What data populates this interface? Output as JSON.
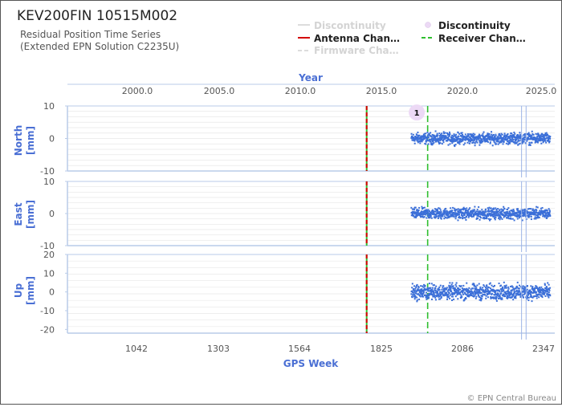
{
  "header": {
    "station": "KEV200FIN 10515M002",
    "subtitle_line1": "Residual Position Time Series",
    "subtitle_line2": "(Extended EPN Solution C2235U)",
    "footer": "© EPN Central Bureau"
  },
  "legend": {
    "items": [
      {
        "label": "Discontinuity",
        "style": "line-faded",
        "color": "#dcdcdc"
      },
      {
        "label": "Discontinuity",
        "style": "circle",
        "color": "#e6d2f0"
      },
      {
        "label": "Antenna Chan…",
        "style": "line",
        "color": "#d40000"
      },
      {
        "label": "Receiver Chan…",
        "style": "dashed",
        "color": "#2fbf2f"
      },
      {
        "label": "Firmware Cha…",
        "style": "dashed-faded",
        "color": "#dcdcdc"
      }
    ]
  },
  "colors": {
    "accent": "#4a6fd4",
    "series": "#3b6fd8",
    "antenna": "#d40000",
    "receiver": "#2fbf2f",
    "axis": "#b9cbe8",
    "grid": "#e8e8e8"
  },
  "chart_data": [
    {
      "type": "scatter",
      "panel": "North",
      "ylabel": "North\n[mm]",
      "ylim": [
        -10,
        10
      ],
      "yticks": [
        10,
        0,
        -10
      ],
      "xlabel_top": "Year",
      "xticks_top": [
        "2000.0",
        "2005.0",
        "2010.0",
        "2015.0",
        "2020.0",
        "2025.0"
      ],
      "xlim_gps_week": [
        781,
        2395
      ],
      "series": [
        {
          "x_range": [
            1920,
            2380
          ],
          "y_center": 0,
          "y_spread": 2.5
        }
      ],
      "events": {
        "antenna_change_week": 1772,
        "receiver_change_week": 1974,
        "discontinuity_marker": {
          "label": "1",
          "week": 1938,
          "y": 8
        }
      }
    },
    {
      "type": "scatter",
      "panel": "East",
      "ylabel": "East\n[mm]",
      "ylim": [
        -10,
        10
      ],
      "yticks": [
        10,
        0,
        -10
      ],
      "series": [
        {
          "x_range": [
            1920,
            2380
          ],
          "y_center": 0,
          "y_spread": 2.5
        }
      ],
      "events": {
        "antenna_change_week": 1772,
        "receiver_change_week": 1974
      }
    },
    {
      "type": "scatter",
      "panel": "Up",
      "ylabel": "Up\n[mm]",
      "ylim": [
        -22,
        20
      ],
      "yticks": [
        20,
        10,
        0,
        -10,
        -20
      ],
      "xlabel": "GPS Week",
      "xticks_bottom": [
        "1042",
        "1303",
        "1564",
        "1825",
        "2086",
        "2347"
      ],
      "series": [
        {
          "x_range": [
            1920,
            2380
          ],
          "y_center": 0,
          "y_spread": 6
        }
      ],
      "events": {
        "antenna_change_week": 1772,
        "receiver_change_week": 1974
      }
    }
  ]
}
